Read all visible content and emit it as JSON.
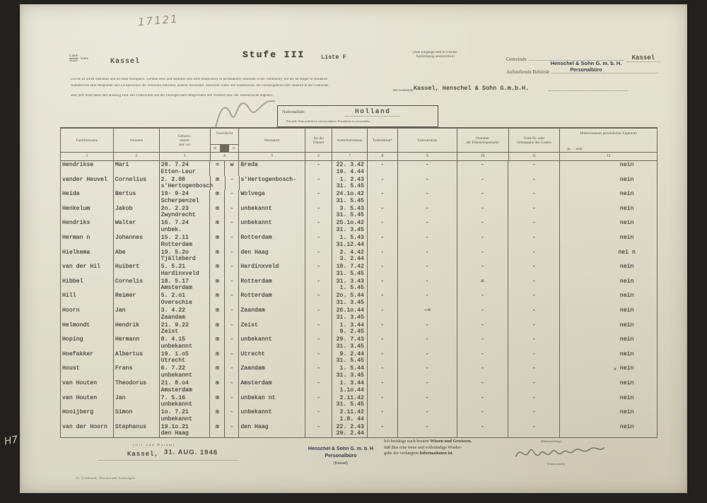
{
  "colors": {
    "frame": "#22211d",
    "paper": "#e1decd",
    "ink": "#4b4840",
    "print": "#5c584b",
    "stamp": "#3c3c4a",
    "pencil": "#98927f",
    "line": "#6e695c"
  },
  "annotations": {
    "pencil_top": "17121",
    "pencil_bottom_left": "H7"
  },
  "header": {
    "kreis_top": "Land-",
    "kreis_bottom": "Stadt-",
    "kreis_suffix": "kreis",
    "kreis_value": "Kassel",
    "stufe": "Stufe III",
    "liste": "Liste F",
    "copies_note": "(Alle Eingänge sind in 9-facher\nAusfertigung einzureichen)",
    "gemeinde_label": "Gemeinde",
    "gemeinde_value": "Kassel",
    "behoerde_label": "Aufstellende Behörde",
    "stamp_line1": "Henschel & Sohn G. m. b. H.",
    "stamp_line2": "Personalbüro"
  },
  "intro": {
    "line1": "List of all allied Nationals and all other foreigners, German Jews and stateless who were temporarily or permanently stationed in the community, but are no longer in residence",
    "line2": "Namentliche aller Mitglieder und Zivilpersonen der Vereinten Nationen, anderer Ausländer, deutscher Juden und Staatenloser, die vorübergehend oder dauernd in der Gemeinde",
    "line3": "aber jetzt nicht mehr dort ansässig sind. Bei Todesfällen und bei Umzügen nach Möglichkeit den Verbleib bzw. die Todesursache angeben.",
    "gemeinde_prefix": "der Gemeinde:",
    "gemeinde_typed": "Kassel, Henschel & Sohn G.m.b.H."
  },
  "nationality": {
    "label": "Nationalität:",
    "value": "Holland",
    "note": "Für jede Nationalität ist ein besonderes Formblatt zu verwenden"
  },
  "table": {
    "columns": [
      {
        "label": "Familienname",
        "num": "1"
      },
      {
        "label": "Vorname",
        "num": "2"
      },
      {
        "label": "Geburts-\ndatum\nund -ort",
        "num": "3"
      },
      {
        "label": "Geschlecht",
        "num": "4",
        "m": "m",
        "w": "w"
      },
      {
        "label": "Heimatort",
        "num": "5"
      },
      {
        "label": "Art der\nEinheit",
        "num": "6"
      },
      {
        "label": "Aufenthaltsdauer",
        "num": "7"
      },
      {
        "label": "Todesdatum*",
        "num": "8"
      },
      {
        "label": "Todesursache",
        "num": "9"
      },
      {
        "label": "Nummer\nder Erkennungsmarke",
        "num": "10"
      },
      {
        "label": "Grab-Nr. oder\nOrtsangabe des Grabes",
        "num": "11"
      },
      {
        "label": "Hinterlassenes persönliches Eigentum",
        "num": "12",
        "ja": "ja",
        "nein": "nein"
      }
    ],
    "rows": [
      {
        "familienname": "Hendrikse",
        "vorname": "Mari",
        "geb_datum": "28. 7.24",
        "geb_ort": "Etten-Leur",
        "m": "=",
        "w": "w",
        "heimatort": "Breda",
        "art": "-",
        "von": "22. 3.42",
        "bis": "19. 4.44",
        "todesdatum": "-",
        "todesursache": "-",
        "marke": "-",
        "grab": "-",
        "eigentum": "nein"
      },
      {
        "familienname": "vander Heuvel",
        "vorname": "Cornelius",
        "geb_datum": "2. 2.08",
        "geb_ort": "s'Hertogenbosch",
        "m": "m",
        "w": "-",
        "heimatort": "s'Hertogenbosch-",
        "art": "-",
        "von": "1. 2.43",
        "bis": "31. 5.45",
        "todesdatum": "-",
        "todesursache": "-",
        "marke": "-",
        "grab": "-",
        "eigentum": "nein"
      },
      {
        "familienname": "Heida",
        "vorname": "Bertus",
        "geb_datum": "19- 9-24",
        "geb_ort": "Scherpenzel",
        "m": "m",
        "w": "-",
        "heimatort": "Wolvega",
        "art": "-",
        "von": "24.1o.42",
        "bis": "31. 5.45",
        "todesdatum": "-",
        "todesursache": "-",
        "marke": "-",
        "grab": "-",
        "eigentum": "nein"
      },
      {
        "familienname": "Henkelum",
        "vorname": "Jakob",
        "geb_datum": "2o. 2.23",
        "geb_ort": "Zwyndrecht",
        "m": "m",
        "w": "-",
        "heimatort": "unbekannt",
        "art": "-",
        "von": "3. 5.43",
        "bis": "31. 5.45",
        "todesdatum": "-",
        "todesursache": "-",
        "marke": "-",
        "grab": "-",
        "eigentum": "nein"
      },
      {
        "familienname": "Hendriks",
        "vorname": "Walter",
        "geb_datum": "16. 7.24",
        "geb_ort": "unbek.",
        "m": "m",
        "w": "-",
        "heimatort": "unbekannt",
        "art": "-",
        "von": "25.1o.42",
        "bis": "31. 3.45",
        "todesdatum": "-",
        "todesursache": "-",
        "marke": "-",
        "grab": "-",
        "eigentum": "nein"
      },
      {
        "familienname": "Herman n",
        "vorname": "Johannes",
        "geb_datum": "15. 2.11",
        "geb_ort": "Rotterdam",
        "m": "m",
        "w": "-",
        "heimatort": "Rotterdam",
        "art": "-",
        "von": "1. 5.43",
        "bis": "31.12.44",
        "todesdatum": "-",
        "todesursache": "-",
        "marke": "-",
        "grab": "-",
        "eigentum": "nein"
      },
      {
        "familienname": "Hielkema",
        "vorname": "Abe",
        "geb_datum": "19. 5.2o",
        "geb_ort": "Tjälleberd",
        "m": "m",
        "w": "-",
        "heimatort": "den Haag",
        "art": "-",
        "von": "2. 4.42",
        "bis": "3. 2.44",
        "todesdatum": "-",
        "todesursache": "-",
        "marke": "-",
        "grab": "-",
        "eigentum": "nei n"
      },
      {
        "familienname": "van der Hil",
        "vorname": "Huibert",
        "geb_datum": "5. 5.21",
        "geb_ort": "Hardinxveld",
        "m": "m",
        "w": "-",
        "heimatort": "Hardinxveld",
        "art": "-",
        "von": "18. 7.42",
        "bis": "31. 5.45",
        "todesdatum": "-",
        "todesursache": "-",
        "marke": "-",
        "grab": "-",
        "eigentum": "nein"
      },
      {
        "familienname": "Hibbel",
        "vorname": "Cornelis",
        "geb_datum": "18. 5.17",
        "geb_ort": "Amsterdam",
        "m": "m",
        "w": "-",
        "heimatort": "Rotterdam",
        "art": "-",
        "von": "31. 3.43",
        "bis": "1. 5.45",
        "todesdatum": "-",
        "todesursache": "-",
        "marke": "=",
        "grab": "-",
        "eigentum": "nein"
      },
      {
        "familienname": "Hill",
        "vorname": "Reimer",
        "geb_datum": "5. 2.o1",
        "geb_ort": "Overschie",
        "m": "m",
        "w": "-",
        "heimatort": "Rotterdam",
        "art": "-",
        "von": "2o. 5.44",
        "bis": "31. 3.45",
        "todesdatum": "-",
        "todesursache": "-",
        "marke": "-",
        "grab": "-",
        "eigentum": "nein"
      },
      {
        "familienname": "Hoorn",
        "vorname": "Jan",
        "geb_datum": "3. 4.22",
        "geb_ort": "Zaandam",
        "m": "m",
        "w": "-",
        "heimatort": "Zaandam",
        "art": "-",
        "von": "26.1o.44",
        "bis": "31. 3.45",
        "todesdatum": "-",
        "todesursache": "-=",
        "marke": "-",
        "grab": "-",
        "eigentum": "nein"
      },
      {
        "familienname": "Helmondt",
        "vorname": "Hendrik",
        "geb_datum": "21. 9.22",
        "geb_ort": "Zeist",
        "m": "m",
        "w": "-",
        "heimatort": "Zeist",
        "art": "-",
        "von": "1. 3.44",
        "bis": "9. 2.45",
        "todesdatum": "-",
        "todesursache": "-",
        "marke": "-",
        "grab": "-",
        "eigentum": "nein"
      },
      {
        "familienname": "Hoping",
        "vorname": "Hermann",
        "geb_datum": "8. 4.15",
        "geb_ort": "unbekannt",
        "m": "m",
        "w": "-",
        "heimatort": "unbekannt",
        "art": "-",
        "von": "29. 7.43",
        "bis": "31. 3.45",
        "todesdatum": "-",
        "todesursache": "-",
        "marke": "-",
        "grab": "-",
        "eigentum": "nein"
      },
      {
        "familienname": "Hoefakker",
        "vorname": "Albertus",
        "geb_datum": "19. 1.o5",
        "geb_ort": "Utrecht",
        "m": "m",
        "w": "-",
        "heimatort": "Utrecht",
        "art": "-",
        "von": "9. 2.44",
        "bis": "31. 5.45",
        "todesdatum": "-",
        "todesursache": "-",
        "marke": "-",
        "grab": "-",
        "eigentum": "nein"
      },
      {
        "familienname": "Houst",
        "vorname": "Frans",
        "geb_datum": "6. 7.22",
        "geb_ort": "unbekannt",
        "m": "m",
        "w": "-",
        "heimatort": "Zaandam",
        "art": "-",
        "von": "1. 5.44",
        "bis": "31. 3.45",
        "todesdatum": "-",
        "todesursache": "-",
        "marke": "-",
        "grab": "-",
        "eigentum": "nein",
        "mark": "v"
      },
      {
        "familienname": "van Houten",
        "vorname": "Theodorus",
        "geb_datum": "21. 8.o4",
        "geb_ort": "Amsterdam",
        "m": "m",
        "w": "-",
        "heimatort": "Amsterdam",
        "art": "-",
        "von": "1. 3.44",
        "bis": "1.1o.44",
        "todesdatum": "-",
        "todesursache": "-",
        "marke": "-",
        "grab": "-",
        "eigentum": "nein"
      },
      {
        "familienname": "van Houten",
        "vorname": "Jan",
        "geb_datum": "7. 5.16",
        "geb_ort": "unbekannt",
        "m": "m",
        "w": "-",
        "heimatort": "unbekan nt",
        "art": "-",
        "von": "2.11.42",
        "bis": "31. 5.45",
        "todesdatum": "-",
        "todesursache": "-",
        "marke": "-",
        "grab": "-",
        "eigentum": "nein"
      },
      {
        "familienname": "Hooijberg",
        "vorname": "Simon",
        "geb_datum": "1o. 7.21",
        "geb_ort": "unbekannt",
        "m": "m",
        "w": "-",
        "heimatort": "unbekannt",
        "art": "-",
        "von": "2.11.42",
        "bis": "1.8. 44",
        "todesdatum": "-",
        "todesursache": "-",
        "marke": "-",
        "grab": "-",
        "eigentum": "nein"
      },
      {
        "familienname": "van der Hoorn",
        "vorname": "Stephanus",
        "geb_datum": "19.1o.21",
        "geb_ort": "den Haag",
        "m": "m",
        "w": "-",
        "heimatort": "den Haag",
        "art": "-",
        "von": "22. 2.43",
        "bis": "29. 2.44",
        "todesdatum": "-",
        "todesursache": "-",
        "marke": "-",
        "grab": "-",
        "eigentum": "nein"
      }
    ]
  },
  "footer": {
    "ort_datum_label": "(Ort und Datum)",
    "ort_value": "Kassel,",
    "date_stamp": "31. AUG. 1948",
    "stamp_line1": "Henschel & Sohn G. m. b. H",
    "stamp_line2": "Personalbüro",
    "stamp_line3": "(Kassel)",
    "confirm_1a": "Ich bestätige nach bestem ",
    "confirm_1b": "Wissen und Gewissen,",
    "confirm_2": "daß dies eine treue und vollständige Wieder-",
    "confirm_3a": "gabe der verlangten ",
    "confirm_3b": "Informationen ist.",
    "role_label": "(Dienststellung)",
    "signature_label": "(Unterschrift)",
    "print_note": "G. Gebhardt, Darmstadt-Arheilgen"
  }
}
